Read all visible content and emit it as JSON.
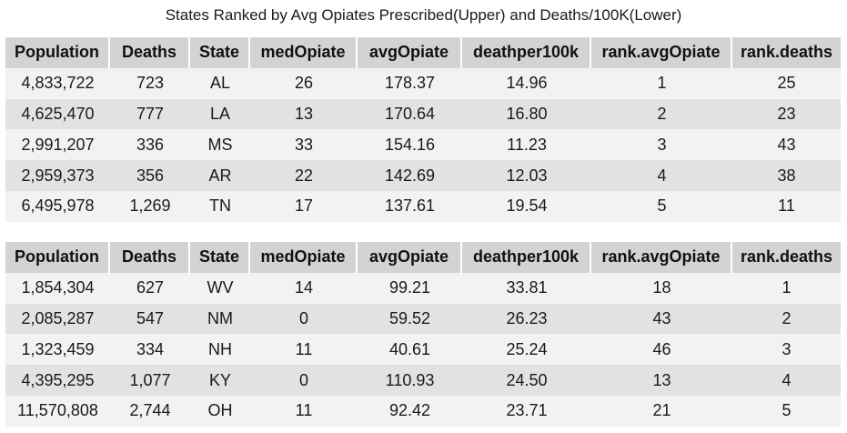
{
  "title": "States Ranked by Avg Opiates Prescribed(Upper) and Deaths/100K(Lower)",
  "chart_data": [
    {
      "type": "table",
      "title": "States Ranked by Avg Opiates Prescribed(Upper) and Deaths/100K(Lower)",
      "columns": [
        "Population",
        "Deaths",
        "State",
        "medOpiate",
        "avgOpiate",
        "deathper100k",
        "rank.avgOpiate",
        "rank.deaths"
      ],
      "rows": [
        [
          "4,833,722",
          "723",
          "AL",
          "26",
          "178.37",
          "14.96",
          "1",
          "25"
        ],
        [
          "4,625,470",
          "777",
          "LA",
          "13",
          "170.64",
          "16.80",
          "2",
          "23"
        ],
        [
          "2,991,207",
          "336",
          "MS",
          "33",
          "154.16",
          "11.23",
          "3",
          "43"
        ],
        [
          "2,959,373",
          "356",
          "AR",
          "22",
          "142.69",
          "12.03",
          "4",
          "38"
        ],
        [
          "6,495,978",
          "1,269",
          "TN",
          "17",
          "137.61",
          "19.54",
          "5",
          "11"
        ]
      ]
    },
    {
      "type": "table",
      "columns": [
        "Population",
        "Deaths",
        "State",
        "medOpiate",
        "avgOpiate",
        "deathper100k",
        "rank.avgOpiate",
        "rank.deaths"
      ],
      "rows": [
        [
          "1,854,304",
          "627",
          "WV",
          "14",
          "99.21",
          "33.81",
          "18",
          "1"
        ],
        [
          "2,085,287",
          "547",
          "NM",
          "0",
          "59.52",
          "26.23",
          "43",
          "2"
        ],
        [
          "1,323,459",
          "334",
          "NH",
          "11",
          "40.61",
          "25.24",
          "46",
          "3"
        ],
        [
          "4,395,295",
          "1,077",
          "KY",
          "0",
          "110.93",
          "24.50",
          "13",
          "4"
        ],
        [
          "11,570,808",
          "2,744",
          "OH",
          "11",
          "92.42",
          "23.71",
          "21",
          "5"
        ]
      ]
    }
  ]
}
